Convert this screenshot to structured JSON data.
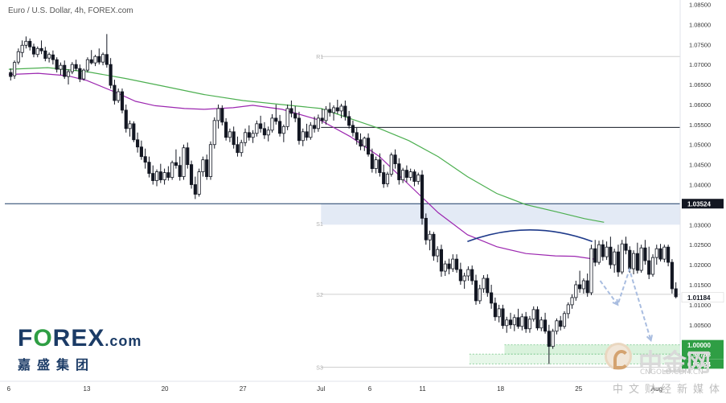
{
  "chart_data": {
    "type": "candlestick",
    "title": "Euro / U.S. Dollar, 4h, FOREX.com",
    "ylim": [
      0.9925,
      1.0855
    ],
    "yticks": [
      "1.08500",
      "1.08000",
      "1.07500",
      "1.07000",
      "1.06500",
      "1.06000",
      "1.05500",
      "1.05000",
      "1.04500",
      "1.04000",
      "1.03500",
      "1.03000",
      "1.02500",
      "1.02000",
      "1.01500",
      "1.01000",
      "1.00500"
    ],
    "xticks": [
      {
        "label": "6",
        "x": 0
      },
      {
        "label": "13",
        "x": 40
      },
      {
        "label": "20",
        "x": 80
      },
      {
        "label": "27",
        "x": 120
      },
      {
        "label": "Jul",
        "x": 160
      },
      {
        "label": "6",
        "x": 185
      },
      {
        "label": "11",
        "x": 212
      },
      {
        "label": "18",
        "x": 252
      },
      {
        "label": "25",
        "x": 292
      },
      {
        "label": "Aug",
        "x": 332
      }
    ],
    "price_tags": [
      {
        "label": "1.03524",
        "value": 1.03524,
        "color": "#131722"
      },
      {
        "label": "1.01184",
        "value": 1.01184,
        "color": "#ffffff"
      },
      {
        "label": "1.00000",
        "value": 1.0,
        "color": "#2f9e44"
      },
      {
        "label": "0.99768",
        "value": 0.99768,
        "color": "#2f9e44"
      },
      {
        "label": "0.99524",
        "value": 0.99524,
        "color": "#2f9e44"
      }
    ],
    "pivot_labels": [
      {
        "label": "R1",
        "value": 1.072
      },
      {
        "label": "P",
        "value": 1.0548
      },
      {
        "label": "S1",
        "value": 1.0303
      },
      {
        "label": "S2",
        "value": 1.0126
      },
      {
        "label": "S3",
        "value": 0.9944
      }
    ],
    "hlines": [
      {
        "value": 1.072,
        "color": "#cfcfcf",
        "start": 160
      },
      {
        "value": 1.0543,
        "color": "#131722",
        "start": 160
      },
      {
        "value": 1.03524,
        "color": "#1b3b66",
        "start": -2
      },
      {
        "value": 1.0126,
        "color": "#cfcfcf",
        "start": 160
      },
      {
        "value": 0.9944,
        "color": "#cfcfcf",
        "start": 160
      }
    ],
    "zones": [
      {
        "y1": 1.0352,
        "y2": 1.03,
        "x1": 160,
        "x2": 344,
        "color": "#e3eaf5"
      },
      {
        "y1": 1.0,
        "y2": 0.99768,
        "x1": 254,
        "x2": 344,
        "color": "#d9f2dc"
      },
      {
        "y1": 0.99768,
        "y2": 0.99524,
        "x1": 236,
        "x2": 344,
        "color": "#e7f7e9"
      }
    ],
    "ma_fast": [
      [
        0,
        1.0675
      ],
      [
        15,
        1.0678
      ],
      [
        30,
        1.0672
      ],
      [
        40,
        1.066
      ],
      [
        55,
        1.063
      ],
      [
        65,
        1.0608
      ],
      [
        75,
        1.0597
      ],
      [
        90,
        1.059
      ],
      [
        100,
        1.0588
      ],
      [
        115,
        1.0592
      ],
      [
        125,
        1.0598
      ],
      [
        140,
        1.0588
      ],
      [
        160,
        1.056
      ],
      [
        175,
        1.052
      ],
      [
        190,
        1.047
      ],
      [
        205,
        1.04
      ],
      [
        220,
        1.033
      ],
      [
        235,
        1.0275
      ],
      [
        250,
        1.0245
      ],
      [
        265,
        1.0228
      ],
      [
        280,
        1.0222
      ],
      [
        290,
        1.0221
      ],
      [
        300,
        1.0214
      ]
    ],
    "ma_slow": [
      [
        0,
        1.0688
      ],
      [
        20,
        1.0692
      ],
      [
        40,
        1.0682
      ],
      [
        60,
        1.0665
      ],
      [
        80,
        1.0645
      ],
      [
        100,
        1.0625
      ],
      [
        120,
        1.061
      ],
      [
        140,
        1.06
      ],
      [
        160,
        1.059
      ],
      [
        175,
        1.0565
      ],
      [
        190,
        1.054
      ],
      [
        205,
        1.051
      ],
      [
        220,
        1.047
      ],
      [
        235,
        1.042
      ],
      [
        250,
        1.0378
      ],
      [
        265,
        1.035
      ],
      [
        280,
        1.0333
      ],
      [
        295,
        1.0315
      ],
      [
        305,
        1.0306
      ]
    ],
    "candles": [
      [
        1.068,
        1.069,
        1.066,
        1.067
      ],
      [
        1.0672,
        1.071,
        1.0664,
        1.0705
      ],
      [
        1.0706,
        1.074,
        1.07,
        1.0732
      ],
      [
        1.073,
        1.076,
        1.0718,
        1.0748
      ],
      [
        1.0748,
        1.077,
        1.074,
        1.0758
      ],
      [
        1.0758,
        1.0765,
        1.0735,
        1.0744
      ],
      [
        1.0744,
        1.0752,
        1.0718,
        1.0726
      ],
      [
        1.0725,
        1.0745,
        1.0718,
        1.074
      ],
      [
        1.074,
        1.076,
        1.0726,
        1.0734
      ],
      [
        1.0734,
        1.0744,
        1.0708,
        1.0715
      ],
      [
        1.0716,
        1.073,
        1.0705,
        1.0725
      ],
      [
        1.0724,
        1.0735,
        1.07,
        1.0712
      ],
      [
        1.0712,
        1.0718,
        1.068,
        1.0688
      ],
      [
        1.0688,
        1.0705,
        1.0674,
        1.0698
      ],
      [
        1.0698,
        1.071,
        1.0664,
        1.067
      ],
      [
        1.067,
        1.0688,
        1.065,
        1.0682
      ],
      [
        1.0682,
        1.0706,
        1.0676,
        1.07
      ],
      [
        1.07,
        1.0712,
        1.0684,
        1.069
      ],
      [
        1.069,
        1.07,
        1.0656,
        1.0664
      ],
      [
        1.0664,
        1.069,
        1.066,
        1.0686
      ],
      [
        1.0686,
        1.0718,
        1.068,
        1.0712
      ],
      [
        1.0712,
        1.0736,
        1.07,
        1.0704
      ],
      [
        1.0704,
        1.0724,
        1.0696,
        1.072
      ],
      [
        1.072,
        1.074,
        1.07,
        1.0706
      ],
      [
        1.0706,
        1.073,
        1.0698,
        1.0725
      ],
      [
        1.0725,
        1.0776,
        1.0692,
        1.07
      ],
      [
        1.07,
        1.0716,
        1.064,
        1.0648
      ],
      [
        1.0648,
        1.0662,
        1.06,
        1.061
      ],
      [
        1.061,
        1.064,
        1.0604,
        1.0632
      ],
      [
        1.0632,
        1.064,
        1.0578,
        1.0586
      ],
      [
        1.0586,
        1.06,
        1.053,
        1.054
      ],
      [
        1.054,
        1.056,
        1.052,
        1.0552
      ],
      [
        1.0552,
        1.0558,
        1.0506,
        1.0512
      ],
      [
        1.0512,
        1.053,
        1.048,
        1.0494
      ],
      [
        1.0494,
        1.051,
        1.0462,
        1.047
      ],
      [
        1.047,
        1.049,
        1.044,
        1.0456
      ],
      [
        1.0456,
        1.047,
        1.0418,
        1.0428
      ],
      [
        1.0428,
        1.0448,
        1.04,
        1.041
      ],
      [
        1.041,
        1.0438,
        1.0396,
        1.0432
      ],
      [
        1.0432,
        1.0452,
        1.0404,
        1.0412
      ],
      [
        1.0412,
        1.044,
        1.04,
        1.043
      ],
      [
        1.043,
        1.0446,
        1.041,
        1.0418
      ],
      [
        1.0418,
        1.046,
        1.0412,
        1.0455
      ],
      [
        1.0455,
        1.0488,
        1.044,
        1.0448
      ],
      [
        1.0448,
        1.047,
        1.041,
        1.042
      ],
      [
        1.042,
        1.05,
        1.0412,
        1.0492
      ],
      [
        1.0492,
        1.0505,
        1.044,
        1.045
      ],
      [
        1.045,
        1.046,
        1.039,
        1.04
      ],
      [
        1.04,
        1.042,
        1.0364,
        1.0376
      ],
      [
        1.0376,
        1.044,
        1.037,
        1.0432
      ],
      [
        1.0432,
        1.047,
        1.042,
        1.0462
      ],
      [
        1.0462,
        1.0475,
        1.0412,
        1.042
      ],
      [
        1.042,
        1.0508,
        1.0412,
        1.05
      ],
      [
        1.05,
        1.0568,
        1.049,
        1.056
      ],
      [
        1.056,
        1.06,
        1.054,
        1.059
      ],
      [
        1.059,
        1.0598,
        1.0548,
        1.0556
      ],
      [
        1.0556,
        1.0566,
        1.051,
        1.0518
      ],
      [
        1.0518,
        1.054,
        1.0506,
        1.0532
      ],
      [
        1.0532,
        1.0545,
        1.049,
        1.05
      ],
      [
        1.05,
        1.052,
        1.047,
        1.048
      ],
      [
        1.048,
        1.0512,
        1.047,
        1.0505
      ],
      [
        1.0505,
        1.054,
        1.0496,
        1.053
      ],
      [
        1.053,
        1.0548,
        1.051,
        1.0518
      ],
      [
        1.0518,
        1.0536,
        1.0504,
        1.0528
      ],
      [
        1.0528,
        1.056,
        1.052,
        1.0552
      ],
      [
        1.0552,
        1.0572,
        1.053,
        1.054
      ],
      [
        1.054,
        1.0556,
        1.0514,
        1.0524
      ],
      [
        1.0524,
        1.0545,
        1.0508,
        1.0536
      ],
      [
        1.0536,
        1.0576,
        1.053,
        1.0566
      ],
      [
        1.0566,
        1.06,
        1.055,
        1.0558
      ],
      [
        1.0558,
        1.0574,
        1.052,
        1.0528
      ],
      [
        1.0528,
        1.055,
        1.0506,
        1.0545
      ],
      [
        1.0545,
        1.06,
        1.0536,
        1.059
      ],
      [
        1.059,
        1.061,
        1.0568,
        1.0578
      ],
      [
        1.0578,
        1.0596,
        1.0556,
        1.0566
      ],
      [
        1.0566,
        1.0582,
        1.05,
        1.051
      ],
      [
        1.051,
        1.054,
        1.0496,
        1.0532
      ],
      [
        1.0532,
        1.0552,
        1.051,
        1.0518
      ],
      [
        1.0518,
        1.0556,
        1.0512,
        1.0548
      ],
      [
        1.0548,
        1.057,
        1.053,
        1.054
      ],
      [
        1.054,
        1.0575,
        1.0532,
        1.0566
      ],
      [
        1.0566,
        1.059,
        1.0552,
        1.056
      ],
      [
        1.056,
        1.0596,
        1.055,
        1.0588
      ],
      [
        1.0588,
        1.0605,
        1.057,
        1.058
      ],
      [
        1.058,
        1.0598,
        1.056,
        1.0592
      ],
      [
        1.0592,
        1.0612,
        1.0576,
        1.0584
      ],
      [
        1.0584,
        1.0602,
        1.0566,
        1.0596
      ],
      [
        1.0596,
        1.061,
        1.056,
        1.057
      ],
      [
        1.057,
        1.0584,
        1.054,
        1.0548
      ],
      [
        1.0548,
        1.056,
        1.052,
        1.053
      ],
      [
        1.053,
        1.0542,
        1.05,
        1.0512
      ],
      [
        1.0512,
        1.0528,
        1.0486,
        1.0496
      ],
      [
        1.0496,
        1.052,
        1.0484,
        1.0516
      ],
      [
        1.0516,
        1.0528,
        1.047,
        1.0476
      ],
      [
        1.0476,
        1.049,
        1.043,
        1.044
      ],
      [
        1.044,
        1.047,
        1.0428,
        1.0462
      ],
      [
        1.0462,
        1.0478,
        1.042,
        1.043
      ],
      [
        1.043,
        1.045,
        1.0392,
        1.0402
      ],
      [
        1.0402,
        1.0432,
        1.0394,
        1.0426
      ],
      [
        1.0426,
        1.048,
        1.042,
        1.0474
      ],
      [
        1.0474,
        1.0488,
        1.044,
        1.0452
      ],
      [
        1.0452,
        1.0466,
        1.04,
        1.0412
      ],
      [
        1.0412,
        1.0442,
        1.0404,
        1.0436
      ],
      [
        1.0436,
        1.0448,
        1.0406,
        1.0418
      ],
      [
        1.0418,
        1.044,
        1.041,
        1.0432
      ],
      [
        1.0432,
        1.0438,
        1.0396,
        1.0408
      ],
      [
        1.0408,
        1.043,
        1.04,
        1.0424
      ],
      [
        1.0424,
        1.0436,
        1.03,
        1.0316
      ],
      [
        1.0316,
        1.0328,
        1.025,
        1.0262
      ],
      [
        1.0262,
        1.0285,
        1.0236,
        1.0276
      ],
      [
        1.0276,
        1.0282,
        1.021,
        1.0222
      ],
      [
        1.0222,
        1.0246,
        1.0206,
        1.0238
      ],
      [
        1.0238,
        1.025,
        1.017,
        1.0184
      ],
      [
        1.0184,
        1.021,
        1.0172,
        1.0202
      ],
      [
        1.0202,
        1.0215,
        1.0176,
        1.019
      ],
      [
        1.019,
        1.0226,
        1.0182,
        1.0214
      ],
      [
        1.0214,
        1.0226,
        1.018,
        1.0188
      ],
      [
        1.0188,
        1.0205,
        1.015,
        1.016
      ],
      [
        1.016,
        1.018,
        1.014,
        1.0172
      ],
      [
        1.0172,
        1.0196,
        1.016,
        1.0188
      ],
      [
        1.0188,
        1.0198,
        1.015,
        1.016
      ],
      [
        1.016,
        1.0175,
        1.01,
        1.011
      ],
      [
        1.011,
        1.015,
        1.0102,
        1.014
      ],
      [
        1.014,
        1.0174,
        1.013,
        1.0166
      ],
      [
        1.0166,
        1.0176,
        1.012,
        1.013
      ],
      [
        1.013,
        1.015,
        1.009,
        1.0104
      ],
      [
        1.0104,
        1.0118,
        1.006,
        1.007
      ],
      [
        1.007,
        1.01,
        1.0056,
        1.009
      ],
      [
        1.009,
        1.01,
        1.004,
        1.0048
      ],
      [
        1.0048,
        1.007,
        1.003,
        1.0062
      ],
      [
        1.0062,
        1.008,
        1.004,
        1.005
      ],
      [
        1.005,
        1.0076,
        1.0034,
        1.0068
      ],
      [
        1.0068,
        1.009,
        1.004,
        1.0046
      ],
      [
        1.0046,
        1.0078,
        1.0036,
        1.007
      ],
      [
        1.007,
        1.0082,
        1.003,
        1.004
      ],
      [
        1.004,
        1.0072,
        1.003,
        1.0064
      ],
      [
        1.0064,
        1.0096,
        1.0058,
        1.0088
      ],
      [
        1.0088,
        1.0096,
        1.0036,
        1.0042
      ],
      [
        1.0042,
        1.007,
        1.0034,
        1.0062
      ],
      [
        1.0062,
        1.008,
        1.0028,
        1.0034
      ],
      [
        1.0034,
        1.005,
        0.9952,
        0.9996
      ],
      [
        0.9996,
        1.004,
        0.999,
        1.0034
      ],
      [
        1.0034,
        1.0066,
        1.0026,
        1.006
      ],
      [
        1.006,
        1.0072,
        1.0036,
        1.0046
      ],
      [
        1.0046,
        1.0084,
        1.004,
        1.0078
      ],
      [
        1.0078,
        1.0106,
        1.0066,
        1.01
      ],
      [
        1.01,
        1.0126,
        1.009,
        1.0118
      ],
      [
        1.0118,
        1.016,
        1.011,
        1.015
      ],
      [
        1.015,
        1.0185,
        1.013,
        1.014
      ],
      [
        1.014,
        1.0166,
        1.0128,
        1.016
      ],
      [
        1.016,
        1.0178,
        1.012,
        1.013
      ],
      [
        1.013,
        1.025,
        1.0124,
        1.024
      ],
      [
        1.024,
        1.0262,
        1.0196,
        1.0206
      ],
      [
        1.0206,
        1.026,
        1.02,
        1.025
      ],
      [
        1.025,
        1.0262,
        1.021,
        1.022
      ],
      [
        1.022,
        1.0258,
        1.0212,
        1.0244
      ],
      [
        1.0244,
        1.027,
        1.019,
        1.02
      ],
      [
        1.02,
        1.024,
        1.018,
        1.0232
      ],
      [
        1.0232,
        1.025,
        1.017,
        1.0182
      ],
      [
        1.0182,
        1.0262,
        1.0176,
        1.0252
      ],
      [
        1.0252,
        1.027,
        1.0226,
        1.0236
      ],
      [
        1.0236,
        1.0246,
        1.018,
        1.019
      ],
      [
        1.019,
        1.0236,
        1.0176,
        1.0228
      ],
      [
        1.0228,
        1.0255,
        1.0178,
        1.0186
      ],
      [
        1.0186,
        1.025,
        1.018,
        1.0242
      ],
      [
        1.0242,
        1.0262,
        1.02,
        1.021
      ],
      [
        1.021,
        1.0245,
        1.0164,
        1.0176
      ],
      [
        1.0176,
        1.0226,
        1.017,
        1.0218
      ],
      [
        1.0218,
        1.025,
        1.02,
        1.024
      ],
      [
        1.024,
        1.0252,
        1.0208,
        1.0214
      ],
      [
        1.0214,
        1.025,
        1.0206,
        1.0244
      ],
      [
        1.0244,
        1.025,
        1.0196,
        1.0206
      ],
      [
        1.0206,
        1.0214,
        1.0128,
        1.014
      ],
      [
        1.014,
        1.0156,
        1.0116,
        1.012
      ]
    ],
    "candle_x": {
      "start": 1,
      "step": 1.97
    },
    "xdomain": [
      -2,
      344
    ],
    "dome": {
      "x1": 235,
      "x2": 299,
      "y_base": 1.0258,
      "y_top": 1.0287
    },
    "forecast_path": [
      [
        303,
        1.016
      ],
      [
        312,
        1.01
      ],
      [
        318,
        1.0188
      ],
      [
        329,
        1.0011
      ]
    ],
    "colors": {
      "ma_fast": "#9c27b0",
      "ma_slow": "#4caf50",
      "dome": "#1e3a8a",
      "forecast": "#a9bde0",
      "candle": "#131722"
    }
  },
  "branding": {
    "logo_pre": "F",
    "logo_o": "O",
    "logo_post": "REX",
    "logo_dotcom": ".com",
    "logo_cn": "嘉盛集团"
  },
  "watermark": {
    "main": "中金网",
    "url": "CNGOLD.COM.CN",
    "sub": "中文财经新媒体"
  }
}
